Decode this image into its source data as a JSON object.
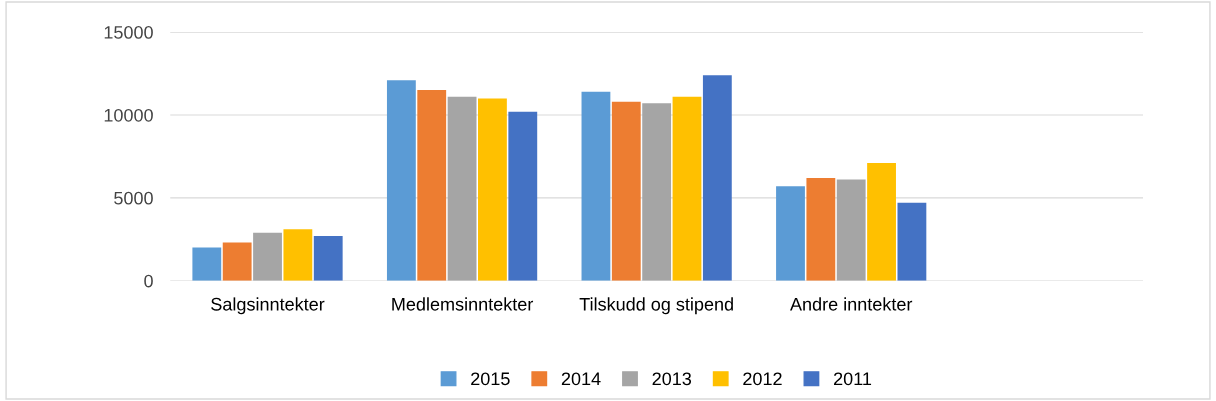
{
  "chart_data": {
    "type": "bar",
    "categories": [
      "Salgsinntekter",
      "Medlemsinntekter",
      "Tilskudd og stipend",
      "Andre inntekter",
      null
    ],
    "series": [
      {
        "name": "2015",
        "color": "#5b9bd5",
        "values": [
          2000,
          12100,
          11400,
          5700,
          null
        ]
      },
      {
        "name": "2014",
        "color": "#ed7d31",
        "values": [
          2300,
          11500,
          10800,
          6200,
          null
        ]
      },
      {
        "name": "2013",
        "color": "#a5a5a5",
        "values": [
          2900,
          11100,
          10700,
          6100,
          null
        ]
      },
      {
        "name": "2012",
        "color": "#ffc000",
        "values": [
          3100,
          11000,
          11100,
          7100,
          null
        ]
      },
      {
        "name": "2011",
        "color": "#4472c4",
        "values": [
          2700,
          10200,
          12400,
          4700,
          null
        ]
      }
    ],
    "ylim": [
      0,
      15000
    ],
    "yticks": [
      0,
      5000,
      10000,
      15000
    ],
    "grid": "y",
    "legend": "bottom"
  }
}
